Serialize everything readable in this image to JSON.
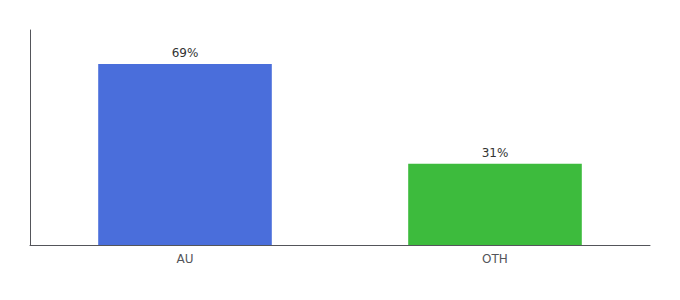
{
  "chart_data": {
    "type": "bar",
    "categories": [
      "AU",
      "OTH"
    ],
    "values": [
      69,
      31
    ],
    "value_labels": [
      "69%",
      "31%"
    ],
    "colors": [
      "#4a6edb",
      "#3dbb3d"
    ],
    "ylim": [
      0,
      82
    ],
    "grid": false,
    "data_labels": true,
    "tick_labels": "x"
  }
}
